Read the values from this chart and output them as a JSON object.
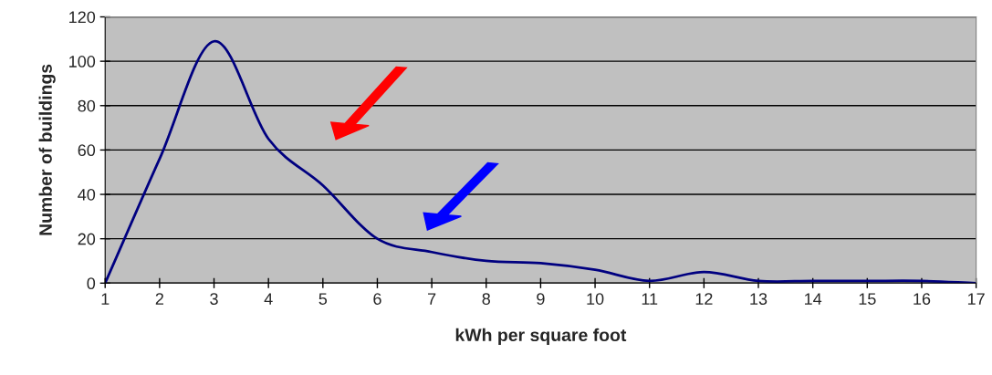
{
  "chart_data": {
    "type": "line",
    "xlabel": "kWh per square foot",
    "ylabel": "Number of buildings",
    "x": [
      1,
      2,
      3,
      4,
      5,
      6,
      7,
      8,
      9,
      10,
      11,
      12,
      13,
      14,
      15,
      16,
      17
    ],
    "series": [
      {
        "color": "#000080",
        "values": [
          0,
          56,
          109,
          65,
          44,
          20,
          14,
          10,
          9,
          6,
          1,
          5,
          1,
          1,
          1,
          1,
          0
        ]
      }
    ],
    "xlim": [
      1,
      17
    ],
    "xticks": [
      1,
      2,
      3,
      4,
      5,
      6,
      7,
      8,
      9,
      10,
      11,
      12,
      13,
      14,
      15,
      16,
      17
    ],
    "ylim": [
      0,
      120
    ],
    "yticks": [
      0,
      20,
      40,
      60,
      80,
      100,
      120
    ],
    "grid": "y",
    "line_style": "solid",
    "marker": "none"
  }
}
